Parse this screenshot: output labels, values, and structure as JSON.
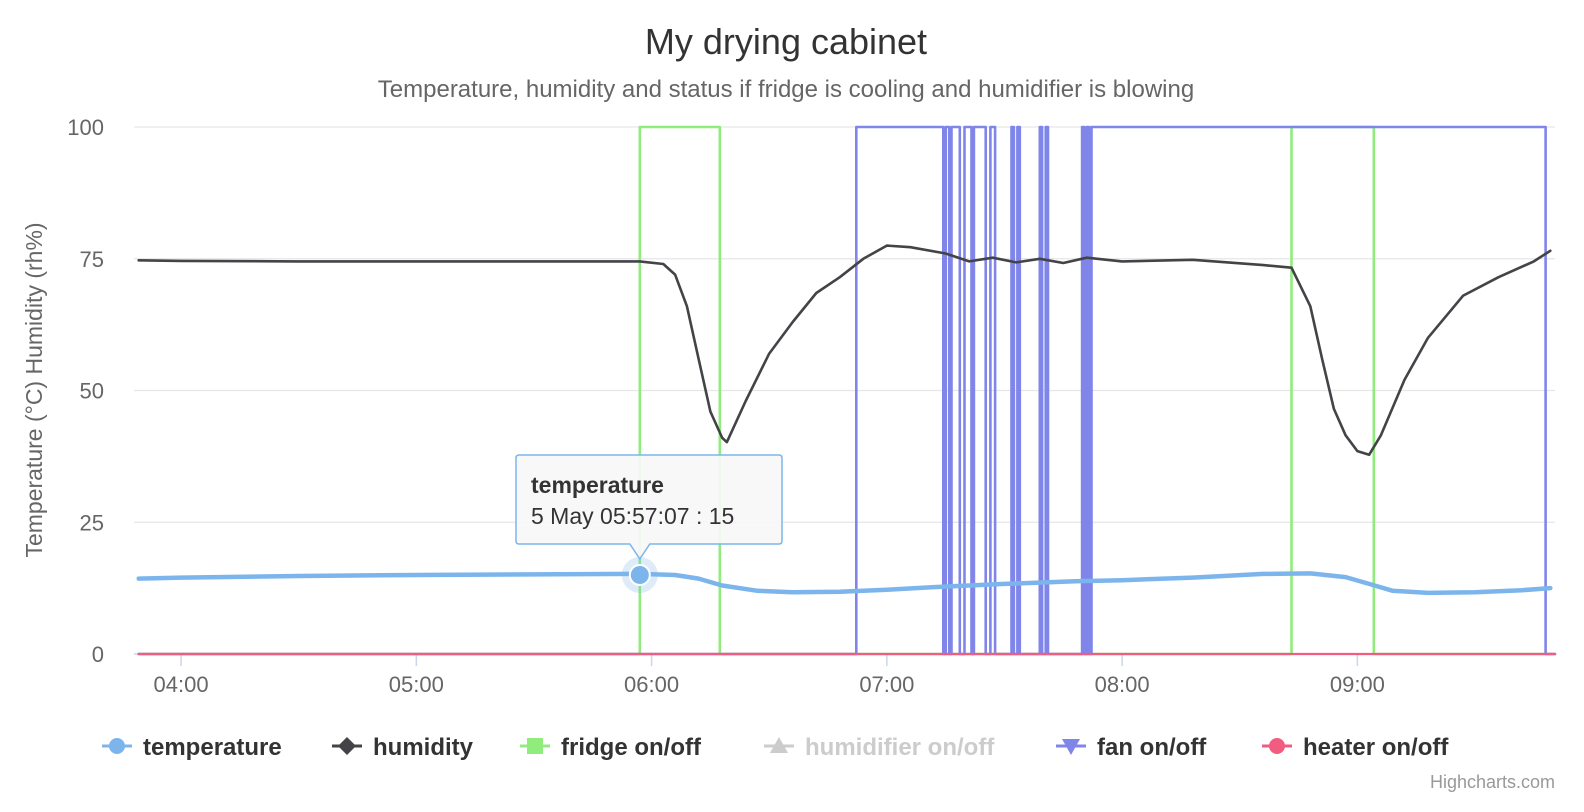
{
  "chart_data": {
    "type": "line",
    "title": "My drying cabinet",
    "subtitle": "Temperature, humidity and status if fridge is cooling and humidifier is blowing",
    "ylabel": "Temperature (°C) Humidity (rh%)",
    "xlabel": "",
    "xlim": [
      3.8,
      9.84
    ],
    "ylim": [
      0,
      100
    ],
    "x_ticks": [
      4,
      5,
      6,
      7,
      8,
      9
    ],
    "x_tick_labels": [
      "04:00",
      "05:00",
      "06:00",
      "07:00",
      "08:00",
      "09:00"
    ],
    "y_ticks": [
      0,
      25,
      50,
      75,
      100
    ],
    "y_tick_labels": [
      "0",
      "25",
      "50",
      "75",
      "100"
    ],
    "grid": true,
    "legend": "bottom",
    "series": [
      {
        "name": "temperature",
        "label": "temperature",
        "color": "#7cb5ec",
        "visible": true,
        "marker": "circle",
        "x": [
          3.82,
          4.0,
          4.5,
          5.0,
          5.5,
          5.95,
          6.1,
          6.2,
          6.3,
          6.45,
          6.6,
          6.8,
          7.0,
          7.2,
          7.5,
          7.8,
          8.0,
          8.3,
          8.6,
          8.8,
          8.95,
          9.05,
          9.15,
          9.3,
          9.5,
          9.7,
          9.82
        ],
        "y": [
          14.3,
          14.5,
          14.8,
          15.0,
          15.1,
          15.2,
          15.0,
          14.3,
          13.0,
          12.0,
          11.7,
          11.8,
          12.2,
          12.7,
          13.3,
          13.8,
          14.0,
          14.5,
          15.2,
          15.3,
          14.6,
          13.3,
          12.0,
          11.6,
          11.7,
          12.1,
          12.5
        ]
      },
      {
        "name": "humidity",
        "label": "humidity",
        "color": "#434348",
        "visible": true,
        "marker": "diamond",
        "x": [
          3.82,
          4.0,
          4.5,
          5.0,
          5.5,
          5.95,
          6.05,
          6.1,
          6.15,
          6.2,
          6.25,
          6.3,
          6.32,
          6.4,
          6.5,
          6.6,
          6.7,
          6.8,
          6.9,
          7.0,
          7.1,
          7.25,
          7.35,
          7.45,
          7.55,
          7.65,
          7.75,
          7.85,
          8.0,
          8.3,
          8.6,
          8.72,
          8.8,
          8.85,
          8.9,
          8.95,
          9.0,
          9.05,
          9.1,
          9.2,
          9.3,
          9.45,
          9.6,
          9.75,
          9.82
        ],
        "y": [
          74.7,
          74.6,
          74.5,
          74.5,
          74.5,
          74.5,
          74.0,
          72.0,
          66.0,
          56.0,
          46.0,
          41.0,
          40.2,
          48.0,
          57.0,
          63.0,
          68.5,
          71.5,
          75.0,
          77.5,
          77.2,
          76.0,
          74.5,
          75.2,
          74.3,
          75.0,
          74.2,
          75.2,
          74.5,
          74.8,
          73.8,
          73.3,
          66.0,
          56.0,
          46.5,
          41.5,
          38.5,
          37.8,
          41.5,
          52.0,
          60.0,
          68.0,
          71.5,
          74.5,
          76.5
        ]
      },
      {
        "name": "fridge on/off",
        "label": "fridge on/off",
        "color": "#90ed7d",
        "visible": true,
        "marker": "square",
        "x": [
          3.82,
          5.95,
          5.95,
          6.29,
          6.29,
          8.72,
          8.72,
          9.07,
          9.07,
          9.84
        ],
        "y": [
          0,
          0,
          100,
          100,
          0,
          0,
          100,
          100,
          0,
          0
        ]
      },
      {
        "name": "humidifier on/off",
        "label": "humidifier on/off",
        "color": "#cccccc",
        "visible": false,
        "marker": "triangle",
        "x": [],
        "y": []
      },
      {
        "name": "fan on/off",
        "label": "fan on/off",
        "color": "#8085e9",
        "visible": true,
        "marker": "triangle-down",
        "x": [
          3.82,
          6.87,
          6.87,
          7.24,
          7.24,
          7.25,
          7.25,
          7.265,
          7.265,
          7.275,
          7.275,
          7.31,
          7.31,
          7.33,
          7.33,
          7.36,
          7.36,
          7.37,
          7.37,
          7.42,
          7.42,
          7.44,
          7.44,
          7.46,
          7.46,
          7.53,
          7.53,
          7.54,
          7.54,
          7.555,
          7.555,
          7.565,
          7.565,
          7.65,
          7.65,
          7.66,
          7.66,
          7.675,
          7.675,
          7.685,
          7.685,
          7.83,
          7.83,
          7.84,
          7.84,
          7.85,
          7.85,
          7.86,
          7.86,
          7.87,
          7.87,
          9.8,
          9.8,
          9.84
        ],
        "y": [
          0,
          0,
          100,
          100,
          0,
          0,
          100,
          100,
          0,
          0,
          100,
          100,
          0,
          0,
          100,
          100,
          0,
          0,
          100,
          100,
          0,
          0,
          100,
          100,
          0,
          0,
          100,
          100,
          0,
          0,
          100,
          100,
          0,
          0,
          100,
          100,
          0,
          0,
          100,
          100,
          0,
          0,
          100,
          100,
          0,
          0,
          100,
          100,
          0,
          0,
          100,
          100,
          0,
          0
        ]
      },
      {
        "name": "heater on/off",
        "label": "heater on/off",
        "color": "#f15c80",
        "visible": true,
        "marker": "circle",
        "x": [
          3.82,
          9.84
        ],
        "y": [
          0,
          0
        ]
      }
    ],
    "tooltip": {
      "series": "temperature",
      "x": 5.95,
      "y": 15,
      "title": "temperature",
      "text": "5 May 05:57:07 : 15"
    }
  },
  "credits": "Highcharts.com"
}
